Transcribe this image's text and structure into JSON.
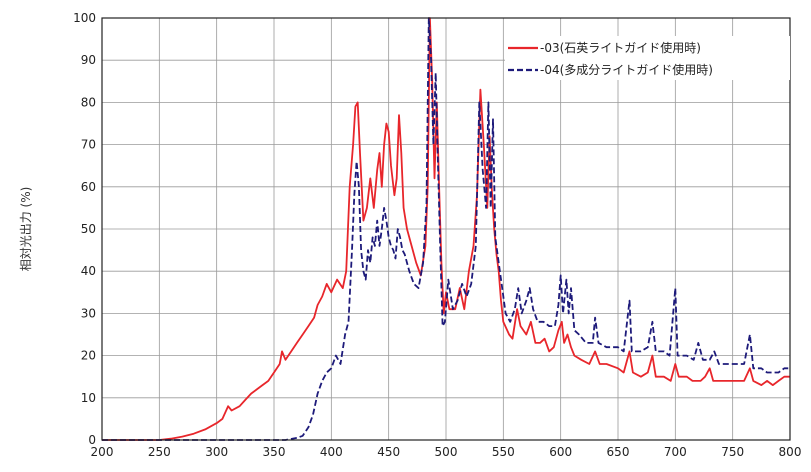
{
  "chart_data": {
    "type": "line",
    "title": "",
    "xlabel": "",
    "ylabel": "相対光出力 (%)",
    "xlim": [
      200,
      800
    ],
    "ylim": [
      0,
      100
    ],
    "grid": true,
    "legend_position": "top-right",
    "x_ticks": [
      "200",
      "250",
      "300",
      "350",
      "400",
      "450",
      "500",
      "550",
      "600",
      "650",
      "700",
      "750",
      "800"
    ],
    "y_ticks": [
      "0",
      "10",
      "20",
      "30",
      "40",
      "50",
      "60",
      "70",
      "80",
      "90",
      "100"
    ],
    "series": [
      {
        "name": "-03(石英ライトガイド使用時)",
        "color": "#e8262b",
        "dash": "solid",
        "points": [
          [
            200,
            0
          ],
          [
            250,
            0
          ],
          [
            260,
            0.3
          ],
          [
            270,
            0.8
          ],
          [
            280,
            1.5
          ],
          [
            290,
            2.5
          ],
          [
            300,
            4
          ],
          [
            305,
            5
          ],
          [
            310,
            8
          ],
          [
            313,
            7
          ],
          [
            320,
            8
          ],
          [
            325,
            9.5
          ],
          [
            330,
            11
          ],
          [
            335,
            12
          ],
          [
            340,
            13
          ],
          [
            345,
            14
          ],
          [
            350,
            16
          ],
          [
            355,
            18
          ],
          [
            357,
            21
          ],
          [
            360,
            19
          ],
          [
            365,
            21
          ],
          [
            370,
            23
          ],
          [
            375,
            25
          ],
          [
            380,
            27
          ],
          [
            385,
            29
          ],
          [
            388,
            32
          ],
          [
            392,
            34
          ],
          [
            396,
            37
          ],
          [
            400,
            35
          ],
          [
            405,
            38
          ],
          [
            410,
            36
          ],
          [
            413,
            40
          ],
          [
            416,
            60
          ],
          [
            419,
            70
          ],
          [
            421,
            79
          ],
          [
            423,
            80
          ],
          [
            425,
            68
          ],
          [
            428,
            52
          ],
          [
            431,
            55
          ],
          [
            434,
            62
          ],
          [
            437,
            55
          ],
          [
            440,
            64
          ],
          [
            442,
            68
          ],
          [
            444,
            60
          ],
          [
            446,
            70
          ],
          [
            448,
            75
          ],
          [
            450,
            73
          ],
          [
            452,
            65
          ],
          [
            455,
            58
          ],
          [
            457,
            62
          ],
          [
            459,
            77
          ],
          [
            461,
            68
          ],
          [
            463,
            55
          ],
          [
            466,
            50
          ],
          [
            470,
            46
          ],
          [
            474,
            42
          ],
          [
            478,
            39
          ],
          [
            482,
            46
          ],
          [
            484,
            60
          ],
          [
            486,
            100
          ],
          [
            488,
            85
          ],
          [
            490,
            62
          ],
          [
            492,
            80
          ],
          [
            494,
            60
          ],
          [
            496,
            42
          ],
          [
            498,
            30
          ],
          [
            500,
            35
          ],
          [
            503,
            31
          ],
          [
            508,
            31
          ],
          [
            512,
            36
          ],
          [
            516,
            31
          ],
          [
            520,
            40
          ],
          [
            524,
            46
          ],
          [
            527,
            58
          ],
          [
            530,
            83
          ],
          [
            533,
            70
          ],
          [
            536,
            55
          ],
          [
            538,
            72
          ],
          [
            540,
            59
          ],
          [
            542,
            50
          ],
          [
            544,
            44
          ],
          [
            546,
            40
          ],
          [
            548,
            33
          ],
          [
            550,
            28
          ],
          [
            555,
            25
          ],
          [
            558,
            24
          ],
          [
            562,
            31
          ],
          [
            565,
            27
          ],
          [
            570,
            25
          ],
          [
            574,
            28
          ],
          [
            578,
            23
          ],
          [
            582,
            23
          ],
          [
            586,
            24
          ],
          [
            590,
            21
          ],
          [
            594,
            22
          ],
          [
            598,
            26
          ],
          [
            601,
            28
          ],
          [
            603,
            23
          ],
          [
            606,
            25
          ],
          [
            609,
            22
          ],
          [
            612,
            20
          ],
          [
            618,
            19
          ],
          [
            625,
            18
          ],
          [
            630,
            21
          ],
          [
            634,
            18
          ],
          [
            640,
            18
          ],
          [
            650,
            17
          ],
          [
            655,
            16
          ],
          [
            660,
            21
          ],
          [
            663,
            16
          ],
          [
            670,
            15
          ],
          [
            676,
            16
          ],
          [
            680,
            20
          ],
          [
            683,
            15
          ],
          [
            690,
            15
          ],
          [
            696,
            14
          ],
          [
            700,
            18
          ],
          [
            703,
            15
          ],
          [
            710,
            15
          ],
          [
            715,
            14
          ],
          [
            722,
            14
          ],
          [
            726,
            15
          ],
          [
            730,
            17
          ],
          [
            733,
            14
          ],
          [
            740,
            14
          ],
          [
            750,
            14
          ],
          [
            760,
            14
          ],
          [
            765,
            17
          ],
          [
            768,
            14
          ],
          [
            775,
            13
          ],
          [
            780,
            14
          ],
          [
            785,
            13
          ],
          [
            790,
            14
          ],
          [
            795,
            15
          ],
          [
            800,
            15
          ]
        ]
      },
      {
        "name": "-04(多成分ライトガイド使用時)",
        "color": "#1d1a7a",
        "dash": "6,3",
        "points": [
          [
            200,
            0
          ],
          [
            360,
            0
          ],
          [
            370,
            0.5
          ],
          [
            375,
            1
          ],
          [
            380,
            3
          ],
          [
            384,
            6
          ],
          [
            388,
            11
          ],
          [
            392,
            14
          ],
          [
            396,
            16
          ],
          [
            400,
            17
          ],
          [
            404,
            20
          ],
          [
            408,
            18
          ],
          [
            412,
            25
          ],
          [
            415,
            28
          ],
          [
            418,
            45
          ],
          [
            420,
            58
          ],
          [
            422,
            66
          ],
          [
            424,
            60
          ],
          [
            426,
            45
          ],
          [
            428,
            40
          ],
          [
            430,
            38
          ],
          [
            432,
            45
          ],
          [
            434,
            42
          ],
          [
            436,
            48
          ],
          [
            438,
            46
          ],
          [
            440,
            52
          ],
          [
            442,
            46
          ],
          [
            444,
            50
          ],
          [
            446,
            55
          ],
          [
            448,
            52
          ],
          [
            450,
            48
          ],
          [
            452,
            46
          ],
          [
            454,
            45
          ],
          [
            456,
            43
          ],
          [
            458,
            50
          ],
          [
            460,
            48
          ],
          [
            462,
            45
          ],
          [
            464,
            44
          ],
          [
            468,
            40
          ],
          [
            472,
            37
          ],
          [
            476,
            36
          ],
          [
            480,
            42
          ],
          [
            483,
            56
          ],
          [
            485,
            100
          ],
          [
            487,
            90
          ],
          [
            489,
            70
          ],
          [
            491,
            87
          ],
          [
            493,
            65
          ],
          [
            495,
            45
          ],
          [
            497,
            27
          ],
          [
            499,
            28
          ],
          [
            502,
            38
          ],
          [
            506,
            31
          ],
          [
            510,
            33
          ],
          [
            514,
            37
          ],
          [
            518,
            34
          ],
          [
            522,
            37
          ],
          [
            526,
            46
          ],
          [
            529,
            80
          ],
          [
            532,
            64
          ],
          [
            535,
            55
          ],
          [
            537,
            80
          ],
          [
            539,
            55
          ],
          [
            541,
            76
          ],
          [
            543,
            48
          ],
          [
            546,
            42
          ],
          [
            549,
            36
          ],
          [
            552,
            30
          ],
          [
            556,
            28
          ],
          [
            560,
            31
          ],
          [
            563,
            36
          ],
          [
            566,
            30
          ],
          [
            570,
            33
          ],
          [
            573,
            36
          ],
          [
            576,
            31
          ],
          [
            580,
            28
          ],
          [
            585,
            28
          ],
          [
            590,
            27
          ],
          [
            595,
            27
          ],
          [
            598,
            32
          ],
          [
            600,
            39
          ],
          [
            602,
            30
          ],
          [
            605,
            38
          ],
          [
            607,
            30
          ],
          [
            609,
            36
          ],
          [
            612,
            26
          ],
          [
            616,
            25
          ],
          [
            622,
            23
          ],
          [
            628,
            23
          ],
          [
            630,
            29
          ],
          [
            633,
            23
          ],
          [
            640,
            22
          ],
          [
            650,
            22
          ],
          [
            655,
            21
          ],
          [
            660,
            33
          ],
          [
            662,
            21
          ],
          [
            670,
            21
          ],
          [
            676,
            22
          ],
          [
            680,
            28
          ],
          [
            683,
            21
          ],
          [
            690,
            21
          ],
          [
            695,
            20
          ],
          [
            700,
            36
          ],
          [
            702,
            20
          ],
          [
            710,
            20
          ],
          [
            716,
            19
          ],
          [
            720,
            23
          ],
          [
            724,
            19
          ],
          [
            730,
            19
          ],
          [
            734,
            21
          ],
          [
            738,
            18
          ],
          [
            745,
            18
          ],
          [
            752,
            18
          ],
          [
            760,
            18
          ],
          [
            765,
            25
          ],
          [
            768,
            17
          ],
          [
            775,
            17
          ],
          [
            780,
            16
          ],
          [
            785,
            16
          ],
          [
            790,
            16
          ],
          [
            795,
            17
          ],
          [
            800,
            17
          ]
        ]
      }
    ]
  }
}
